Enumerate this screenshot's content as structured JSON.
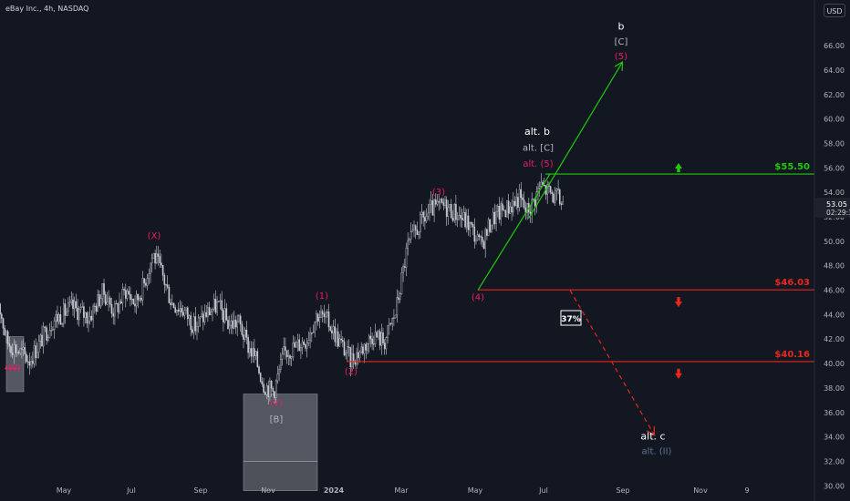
{
  "header": {
    "title": "eBay Inc., 4h, NASDAQ",
    "currency_button": "USD"
  },
  "colors": {
    "background": "#131722",
    "candles": "#c8cbd2",
    "green": "#22c80a",
    "red": "#e8261c",
    "magenta": "#e91e63",
    "white": "#ffffff",
    "gray": "#b2b5be",
    "blue_gray": "#5b7896"
  },
  "chart_data": {
    "type": "candlestick",
    "symbol": "eBay Inc.",
    "interval": "4h",
    "exchange": "NASDAQ",
    "currency": "USD",
    "ylim": [
      29.5,
      67.5
    ],
    "x_ticks": [
      "May",
      "Jul",
      "Sep",
      "Nov",
      "2024",
      "Mar",
      "May",
      "Jul",
      "Sep",
      "Nov",
      "9"
    ],
    "y_ticks": [
      "30.00",
      "32.00",
      "34.00",
      "36.00",
      "38.00",
      "40.00",
      "42.00",
      "44.00",
      "46.00",
      "48.00",
      "50.00",
      "52.00",
      "54.00",
      "56.00",
      "58.00",
      "60.00",
      "62.00",
      "64.00",
      "66.00"
    ],
    "current_price": {
      "value": 53.05,
      "label": "53.05",
      "countdown": "02:29:3"
    },
    "price_path": [
      {
        "x": "Mar 2023",
        "y": 46.3
      },
      {
        "x": "Apr 2023",
        "y": 41.8
      },
      {
        "x": "Apr 2023",
        "y": 40.3
      },
      {
        "x": "Apr 2023",
        "y": 43.5
      },
      {
        "x": "May 2023",
        "y": 44.6
      },
      {
        "x": "May 2023",
        "y": 43.8
      },
      {
        "x": "Jun 2023",
        "y": 45.9
      },
      {
        "x": "Jun 2023",
        "y": 44.2
      },
      {
        "x": "Jun 2023",
        "y": 46.0
      },
      {
        "x": "Jul 2023",
        "y": 44.9
      },
      {
        "x": "Jul 2023",
        "y": 46.6
      },
      {
        "x": "Jul 2023",
        "y": 49.0
      },
      {
        "x": "Jul 2023",
        "y": 47.4
      },
      {
        "x": "Aug 2023",
        "y": 45.0
      },
      {
        "x": "Aug 2023",
        "y": 44.4
      },
      {
        "x": "Aug 2023",
        "y": 43.0
      },
      {
        "x": "Sep 2023",
        "y": 44.1
      },
      {
        "x": "Sep 2023",
        "y": 44.8
      },
      {
        "x": "Sep 2023",
        "y": 43.2
      },
      {
        "x": "Oct 2023",
        "y": 43.4
      },
      {
        "x": "Oct 2023",
        "y": 41.6
      },
      {
        "x": "Oct 2023",
        "y": 40.4
      },
      {
        "x": "Oct 2023",
        "y": 38.3
      },
      {
        "x": "Nov 2023",
        "y": 37.7
      },
      {
        "x": "Nov 2023",
        "y": 40.9
      },
      {
        "x": "Nov 2023",
        "y": 41.4
      },
      {
        "x": "Dec 2023",
        "y": 42.0
      },
      {
        "x": "Dec 2023",
        "y": 44.1
      },
      {
        "x": "Dec 2023",
        "y": 43.4
      },
      {
        "x": "Jan 2024",
        "y": 41.8
      },
      {
        "x": "Jan 2024",
        "y": 40.3
      },
      {
        "x": "Jan 2024",
        "y": 41.2
      },
      {
        "x": "Feb 2024",
        "y": 42.4
      },
      {
        "x": "Feb 2024",
        "y": 41.8
      },
      {
        "x": "Feb 2024",
        "y": 44.2
      },
      {
        "x": "Mar 2024",
        "y": 49.5
      },
      {
        "x": "Mar 2024",
        "y": 51.4
      },
      {
        "x": "Mar 2024",
        "y": 52.6
      },
      {
        "x": "Apr 2024",
        "y": 52.9
      },
      {
        "x": "Apr 2024",
        "y": 52.3
      },
      {
        "x": "Apr 2024",
        "y": 51.4
      },
      {
        "x": "May 2024",
        "y": 49.6
      },
      {
        "x": "May 2024",
        "y": 51.8
      },
      {
        "x": "May 2024",
        "y": 52.6
      },
      {
        "x": "Jun 2024",
        "y": 53.0
      },
      {
        "x": "Jun 2024",
        "y": 53.6
      },
      {
        "x": "Jun 2024",
        "y": 52.4
      },
      {
        "x": "Jun 2024",
        "y": 53.2
      },
      {
        "x": "Jun 2024",
        "y": 54.6
      },
      {
        "x": "Jul 2024",
        "y": 53.1
      }
    ],
    "levels": [
      {
        "price": 55.5,
        "label": "$55.50",
        "color": "#22c80a",
        "arrow": "up"
      },
      {
        "price": 46.03,
        "label": "$46.03",
        "color": "#e8261c",
        "arrow": "down"
      },
      {
        "price": 40.16,
        "label": "$40.16",
        "color": "#e8261c",
        "arrow": "down"
      }
    ],
    "zones": [
      {
        "name": "wave-b-box",
        "x_start": "Oct 2023",
        "x_end": "Dec 2023",
        "y_top": 37.5,
        "y_bottom": 32.0,
        "tone": "light"
      },
      {
        "name": "wave-b-box-lower",
        "x_start": "Oct 2023",
        "x_end": "Dec 2023",
        "y_top": 32.0,
        "y_bottom": 29.6,
        "tone": "dark"
      },
      {
        "name": "wave-w-box",
        "x_start": "Mar 2023",
        "x_end": "Apr 2023",
        "y_top": 42.2,
        "y_bottom": 37.7,
        "tone": "light"
      }
    ],
    "projections": [
      {
        "name": "bullish-path",
        "color": "#22c80a",
        "style": "solid",
        "points": [
          {
            "x": "May 2024",
            "y": 46.0
          },
          {
            "x": "Jul 2024",
            "y": 55.5
          }
        ],
        "arrow": false
      },
      {
        "name": "bullish-target-arrow",
        "color": "#22c80a",
        "style": "solid",
        "points": [
          {
            "x": "Jun 2024",
            "y": 51.9
          },
          {
            "x": "Sep 2024",
            "y": 64.6
          }
        ],
        "arrow": true
      },
      {
        "name": "bearish-path",
        "color": "#e8261c",
        "style": "dashed",
        "points": [
          {
            "x": "Jul 2024",
            "y": 46.0
          },
          {
            "x": "Sep 2024",
            "y": 34.2
          }
        ],
        "arrow": true
      }
    ],
    "probability": "37%",
    "annotations": [
      {
        "text": "(W)",
        "x": "Apr 2023",
        "y": 39.4,
        "color": "#e91e63",
        "style": "strike"
      },
      {
        "text": "(X)",
        "x": "Jul 2023",
        "y": 50.2,
        "color": "#e91e63"
      },
      {
        "text": "(Y)",
        "x": "Nov 2023",
        "y": 36.5,
        "color": "#e91e63"
      },
      {
        "text": "[B]",
        "x": "Nov 2023",
        "y": 35.2,
        "color": "#b2b5be"
      },
      {
        "text": "(1)",
        "x": "Dec 2023",
        "y": 45.3,
        "color": "#e91e63"
      },
      {
        "text": "(2)",
        "x": "Jan 2024",
        "y": 39.1,
        "color": "#e91e63"
      },
      {
        "text": "(3)",
        "x": "Apr 2024",
        "y": 53.8,
        "color": "#e91e63"
      },
      {
        "text": "(4)",
        "x": "May 2024",
        "y": 45.2,
        "color": "#e91e63"
      },
      {
        "text": "alt. b",
        "x": "Jun 2024",
        "y": 58.7,
        "color": "#ffffff"
      },
      {
        "text": "alt. [C]",
        "x": "Jun 2024",
        "y": 57.4,
        "color": "#b2b5be"
      },
      {
        "text": "alt. (5)",
        "x": "Jun 2024",
        "y": 56.1,
        "color": "#e91e63"
      },
      {
        "text": "b",
        "x": "Sep 2024",
        "y": 67.3,
        "color": "#ffffff"
      },
      {
        "text": "[C]",
        "x": "Sep 2024",
        "y": 66.1,
        "color": "#b2b5be"
      },
      {
        "text": "(5)",
        "x": "Sep 2024",
        "y": 64.9,
        "color": "#e91e63"
      },
      {
        "text": "alt. c",
        "x": "Sep 2024",
        "y": 33.8,
        "color": "#ffffff"
      },
      {
        "text": "alt. (II)",
        "x": "Sep 2024",
        "y": 32.6,
        "color": "#5b7896"
      }
    ]
  }
}
